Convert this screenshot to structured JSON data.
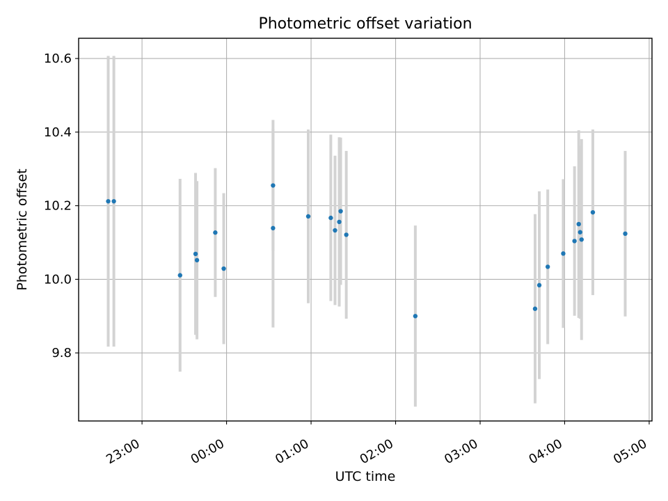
{
  "chart_data": {
    "type": "scatter",
    "title": "Photometric offset variation",
    "xlabel": "UTC time",
    "ylabel": "Photometric offset",
    "x_axis_type": "time",
    "xlim": [
      "22:15",
      "05:02"
    ],
    "ylim": [
      9.615,
      10.655
    ],
    "x_ticks": [
      "23:00",
      "00:00",
      "01:00",
      "02:00",
      "03:00",
      "04:00",
      "05:00"
    ],
    "y_ticks": [
      "9.8",
      "10.0",
      "10.2",
      "10.4",
      "10.6"
    ],
    "y_tick_values": [
      9.8,
      10.0,
      10.2,
      10.4,
      10.6
    ],
    "grid": true,
    "marker_color": "#1f77b4",
    "errorbar_color": "#d3d3d3",
    "points": [
      {
        "time": "22:36",
        "y": 10.212,
        "err": 0.395
      },
      {
        "time": "22:40",
        "y": 10.212,
        "err": 0.395
      },
      {
        "time": "23:27",
        "y": 10.011,
        "err": 0.262
      },
      {
        "time": "23:38",
        "y": 10.069,
        "err": 0.22
      },
      {
        "time": "23:39",
        "y": 10.052,
        "err": 0.215
      },
      {
        "time": "23:52",
        "y": 10.127,
        "err": 0.175
      },
      {
        "time": "23:58",
        "y": 10.029,
        "err": 0.205
      },
      {
        "time": "00:33",
        "y": 10.255,
        "err": 0.178
      },
      {
        "time": "00:33",
        "y": 10.139,
        "err": 0.27
      },
      {
        "time": "00:58",
        "y": 10.171,
        "err": 0.236
      },
      {
        "time": "01:14",
        "y": 10.167,
        "err": 0.226
      },
      {
        "time": "01:17",
        "y": 10.133,
        "err": 0.203
      },
      {
        "time": "01:20",
        "y": 10.156,
        "err": 0.23
      },
      {
        "time": "01:21",
        "y": 10.185,
        "err": 0.2
      },
      {
        "time": "01:25",
        "y": 10.121,
        "err": 0.228
      },
      {
        "time": "02:14",
        "y": 9.9,
        "err": 0.246
      },
      {
        "time": "03:39",
        "y": 9.92,
        "err": 0.257
      },
      {
        "time": "03:42",
        "y": 9.984,
        "err": 0.255
      },
      {
        "time": "03:48",
        "y": 10.034,
        "err": 0.21
      },
      {
        "time": "03:59",
        "y": 10.07,
        "err": 0.202
      },
      {
        "time": "04:07",
        "y": 10.104,
        "err": 0.203
      },
      {
        "time": "04:10",
        "y": 10.15,
        "err": 0.255
      },
      {
        "time": "04:11",
        "y": 10.128,
        "err": 0.235
      },
      {
        "time": "04:12",
        "y": 10.108,
        "err": 0.273
      },
      {
        "time": "04:20",
        "y": 10.182,
        "err": 0.225
      },
      {
        "time": "04:43",
        "y": 10.124,
        "err": 0.225
      }
    ]
  }
}
